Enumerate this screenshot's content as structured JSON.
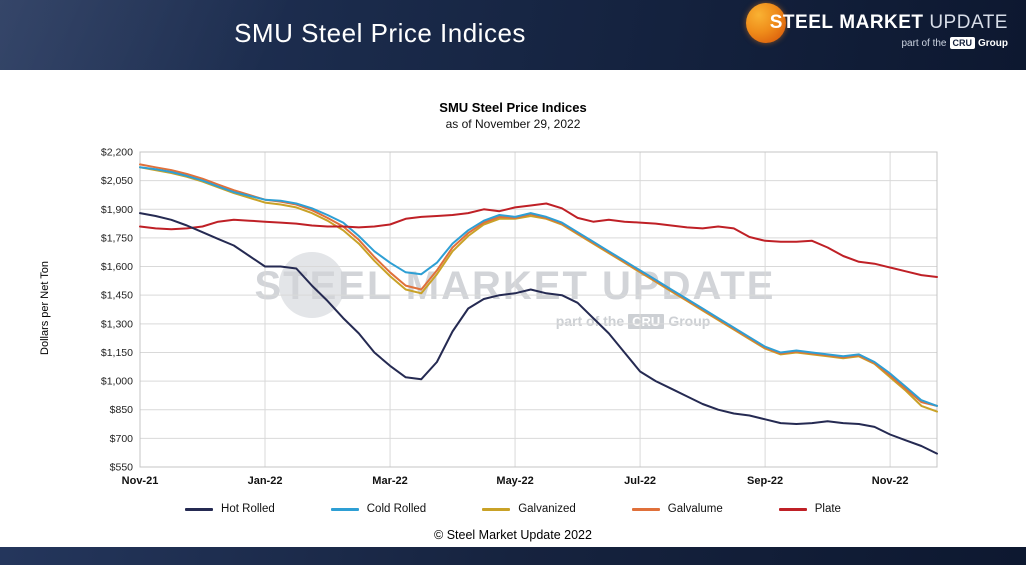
{
  "header": {
    "title": "SMU Steel Price Indices",
    "logo": {
      "steel": "STEEL",
      "market": "MARKET",
      "update": "UPDATE",
      "tagline_prefix": "part of the",
      "tagline_cru": "CRU",
      "tagline_suffix": "Group"
    },
    "colors": {
      "navy": "#16233f",
      "orange": "#ef8c1a"
    }
  },
  "chart": {
    "title": "SMU Steel Price Indices",
    "subtitle": "as of November 29, 2022",
    "ylabel": "Dollars per Net Ton",
    "copyright": "© Steel Market Update 2022"
  },
  "watermark": {
    "line1": "STEEL MARKET UPDATE",
    "line2_prefix": "part of the",
    "line2_cru": "CRU",
    "line2_suffix": "Group"
  },
  "chart_data": {
    "type": "line",
    "title": "SMU Steel Price Indices",
    "subtitle": "as of November 29, 2022",
    "xlabel": "",
    "ylabel": "Dollars per Net Ton",
    "ylim": [
      550,
      2200
    ],
    "ytick_step": 150,
    "yticks_labels": [
      "$550",
      "$700",
      "$850",
      "$1,000",
      "$1,150",
      "$1,300",
      "$1,450",
      "$1,600",
      "$1,750",
      "$1,900",
      "$2,050",
      "$2,200"
    ],
    "grid": true,
    "legend_position": "bottom",
    "x_unit": "months-from-Nov-2021",
    "x_months_span": [
      0,
      12.75
    ],
    "x_step": 0.25,
    "xticks": [
      {
        "x": 0,
        "label": "Nov-21"
      },
      {
        "x": 2,
        "label": "Jan-22"
      },
      {
        "x": 4,
        "label": "Mar-22"
      },
      {
        "x": 6,
        "label": "May-22"
      },
      {
        "x": 8,
        "label": "Jul-22"
      },
      {
        "x": 10,
        "label": "Sep-22"
      },
      {
        "x": 12,
        "label": "Nov-22"
      }
    ],
    "series": [
      {
        "name": "Hot Rolled",
        "color": "#252a52",
        "values": [
          1880,
          1865,
          1845,
          1815,
          1780,
          1745,
          1710,
          1655,
          1600,
          1600,
          1590,
          1500,
          1420,
          1330,
          1250,
          1150,
          1080,
          1020,
          1010,
          1100,
          1260,
          1380,
          1430,
          1450,
          1460,
          1480,
          1460,
          1450,
          1410,
          1330,
          1250,
          1150,
          1050,
          1000,
          960,
          920,
          880,
          850,
          830,
          820,
          800,
          780,
          775,
          780,
          790,
          780,
          775,
          760,
          720,
          690,
          660,
          620
        ]
      },
      {
        "name": "Cold Rolled",
        "color": "#2e9fd4",
        "values": [
          2120,
          2110,
          2095,
          2075,
          2050,
          2020,
          1990,
          1970,
          1950,
          1945,
          1930,
          1905,
          1870,
          1830,
          1760,
          1680,
          1620,
          1570,
          1560,
          1620,
          1720,
          1790,
          1840,
          1870,
          1860,
          1880,
          1860,
          1830,
          1780,
          1730,
          1680,
          1630,
          1580,
          1530,
          1480,
          1430,
          1380,
          1330,
          1280,
          1230,
          1180,
          1150,
          1160,
          1150,
          1140,
          1130,
          1140,
          1100,
          1040,
          970,
          900,
          870
        ]
      },
      {
        "name": "Galvanized",
        "color": "#c9a227",
        "values": [
          2120,
          2105,
          2090,
          2070,
          2045,
          2015,
          1985,
          1960,
          1935,
          1925,
          1910,
          1880,
          1840,
          1790,
          1720,
          1630,
          1550,
          1480,
          1460,
          1560,
          1680,
          1760,
          1820,
          1850,
          1850,
          1865,
          1850,
          1820,
          1770,
          1720,
          1670,
          1620,
          1570,
          1520,
          1470,
          1420,
          1370,
          1320,
          1270,
          1220,
          1170,
          1140,
          1150,
          1140,
          1130,
          1120,
          1130,
          1090,
          1020,
          950,
          870,
          840
        ]
      },
      {
        "name": "Galvalume",
        "color": "#e0703a",
        "values": [
          2135,
          2120,
          2105,
          2085,
          2060,
          2030,
          2000,
          1975,
          1950,
          1940,
          1925,
          1895,
          1855,
          1810,
          1740,
          1650,
          1570,
          1500,
          1480,
          1580,
          1700,
          1775,
          1830,
          1860,
          1855,
          1875,
          1855,
          1825,
          1775,
          1725,
          1675,
          1625,
          1575,
          1525,
          1475,
          1425,
          1375,
          1325,
          1275,
          1225,
          1175,
          1145,
          1155,
          1145,
          1135,
          1125,
          1135,
          1095,
          1030,
          960,
          890,
          870
        ]
      },
      {
        "name": "Plate",
        "color": "#bf2026",
        "values": [
          1810,
          1800,
          1795,
          1800,
          1810,
          1835,
          1845,
          1840,
          1835,
          1830,
          1825,
          1815,
          1810,
          1810,
          1805,
          1810,
          1820,
          1850,
          1860,
          1865,
          1870,
          1880,
          1900,
          1890,
          1910,
          1920,
          1930,
          1905,
          1855,
          1835,
          1845,
          1835,
          1830,
          1825,
          1815,
          1805,
          1800,
          1810,
          1800,
          1755,
          1735,
          1730,
          1730,
          1735,
          1700,
          1655,
          1625,
          1615,
          1595,
          1575,
          1555,
          1545
        ]
      }
    ]
  }
}
